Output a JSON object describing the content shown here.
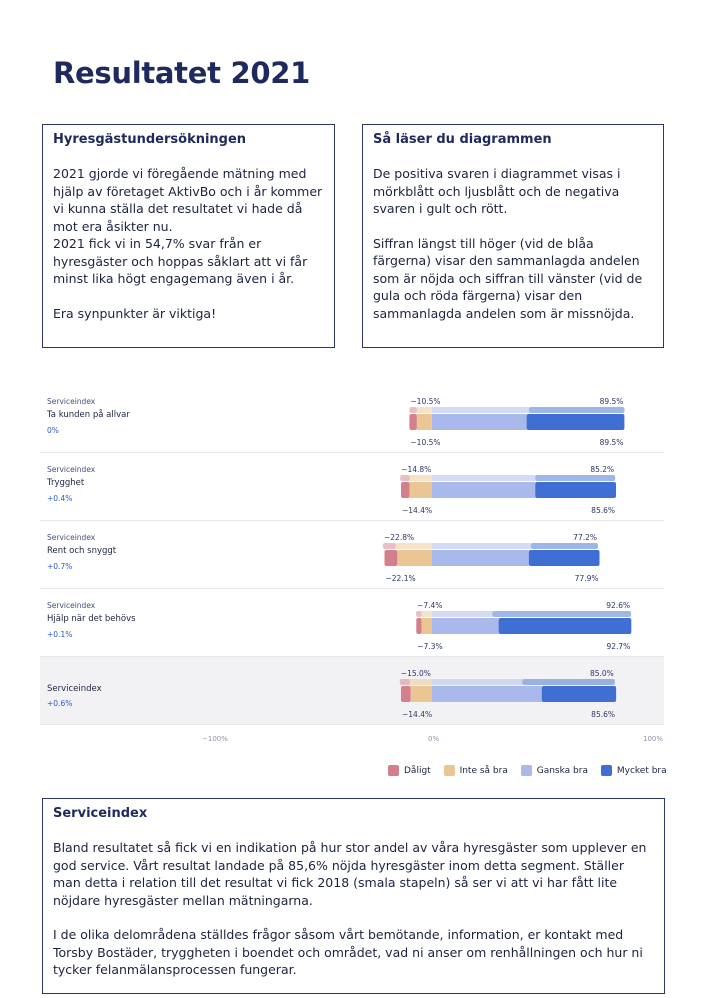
{
  "page": {
    "title": "Resultatet 2021"
  },
  "survey_box": {
    "heading": "Hyresgästundersökningen",
    "paragraph1": "2021 gjorde vi föregående mätning med hjälp av företaget AktivBo och i år kommer vi kunna ställa det resultatet vi hade då mot era åsikter nu.",
    "paragraph2": "2021 fick vi in 54,7% svar från er hyresgäster och hoppas såklart att vi får minst lika högt engagemang även i år.",
    "paragraph3": "Era synpunkter är viktiga!"
  },
  "howto_box": {
    "heading": "Så läser du diagrammen",
    "paragraph1": "De positiva svaren i diagrammet visas i mörkblått och ljusblått och de negativa svaren i gult och rött.",
    "paragraph2": "Siffran längst till höger (vid de blåa färgerna) visar den sammanlagda andelen som är nöjda och siffran till vänster (vid de gula och röda färgerna) visar den sammanlagda andelen som är missnöjda."
  },
  "service_box": {
    "heading": "Serviceindex",
    "paragraph1": "Bland resultatet så fick vi en indikation på hur stor andel av våra hyresgäster som upplever en god service. Vårt resultat landade på 85,6% nöjda hyresgäster inom detta segment. Ställer man detta i relation till det resultat vi fick 2018 (smala stapeln) så ser vi att vi har fått lite nöjdare hyresgäster mellan mätningarna.",
    "paragraph2": "I de olika delområdena ställdes frågor såsom vårt bemötande, information, er kontakt med Torsby Bostäder, tryggheten i boendet och området, vad ni anser om renhållningen och hur ni tycker felanmälansprocessen fungerar."
  },
  "colors": {
    "daligt": "#d4808c",
    "inte_sa_bra": "#ebc694",
    "ganska_bra": "#a9b9ec",
    "mycket_bra": "#3f6fd2"
  },
  "chart_data": {
    "type": "bar",
    "orientation": "horizontal-diverging",
    "xticks": [
      "−100%",
      "0%",
      "100%"
    ],
    "xlim": [
      -100,
      100
    ],
    "legend": [
      "Dåligt",
      "Inte så bra",
      "Ganska bra",
      "Mycket bra"
    ],
    "legend_position": "bottom-right",
    "rows": [
      {
        "small": "Serviceindex",
        "label": "Ta kunden på allvar",
        "change": "0%",
        "prev_neg_label": "−10.5%",
        "prev_pos_label": "89.5%",
        "cur_neg_label": "−10.5%",
        "cur_pos_label": "89.5%",
        "prev": {
          "daligt": 3.5,
          "inte_sa_bra": 7.0,
          "ganska_bra": 45.0,
          "mycket_bra": 44.5
        },
        "cur": {
          "daligt": 3.5,
          "inte_sa_bra": 7.0,
          "ganska_bra": 44.0,
          "mycket_bra": 45.5
        }
      },
      {
        "small": "Serviceindex",
        "label": "Trygghet",
        "change": "+0.4%",
        "prev_neg_label": "−14.8%",
        "prev_pos_label": "85.2%",
        "cur_neg_label": "−14.4%",
        "cur_pos_label": "85.6%",
        "prev": {
          "daligt": 4.5,
          "inte_sa_bra": 10.3,
          "ganska_bra": 48.0,
          "mycket_bra": 37.2
        },
        "cur": {
          "daligt": 4.0,
          "inte_sa_bra": 10.4,
          "ganska_bra": 48.0,
          "mycket_bra": 37.6
        }
      },
      {
        "small": "Serviceindex",
        "label": "Rent och snyggt",
        "change": "+0.7%",
        "prev_neg_label": "−22.8%",
        "prev_pos_label": "77.2%",
        "cur_neg_label": "−22.1%",
        "cur_pos_label": "77.9%",
        "prev": {
          "daligt": 6.0,
          "inte_sa_bra": 16.8,
          "ganska_bra": 46.0,
          "mycket_bra": 31.2
        },
        "cur": {
          "daligt": 6.0,
          "inte_sa_bra": 16.1,
          "ganska_bra": 45.0,
          "mycket_bra": 32.9
        }
      },
      {
        "small": "Serviceindex",
        "label": "Hjälp när det behövs",
        "change": "+0.1%",
        "prev_neg_label": "−7.4%",
        "prev_pos_label": "92.6%",
        "cur_neg_label": "−7.3%",
        "cur_pos_label": "92.7%",
        "prev": {
          "daligt": 2.5,
          "inte_sa_bra": 4.9,
          "ganska_bra": 28.0,
          "mycket_bra": 64.6
        },
        "cur": {
          "daligt": 2.5,
          "inte_sa_bra": 4.8,
          "ganska_bra": 31.0,
          "mycket_bra": 61.7
        }
      },
      {
        "small": "",
        "label": "Serviceindex",
        "change": "+0.6%",
        "prev_neg_label": "−15.0%",
        "prev_pos_label": "85.0%",
        "cur_neg_label": "−14.4%",
        "cur_pos_label": "85.6%",
        "prev": {
          "daligt": 4.8,
          "inte_sa_bra": 10.2,
          "ganska_bra": 42.0,
          "mycket_bra": 43.0
        },
        "cur": {
          "daligt": 4.5,
          "inte_sa_bra": 9.9,
          "ganska_bra": 51.0,
          "mycket_bra": 34.6
        }
      }
    ]
  }
}
